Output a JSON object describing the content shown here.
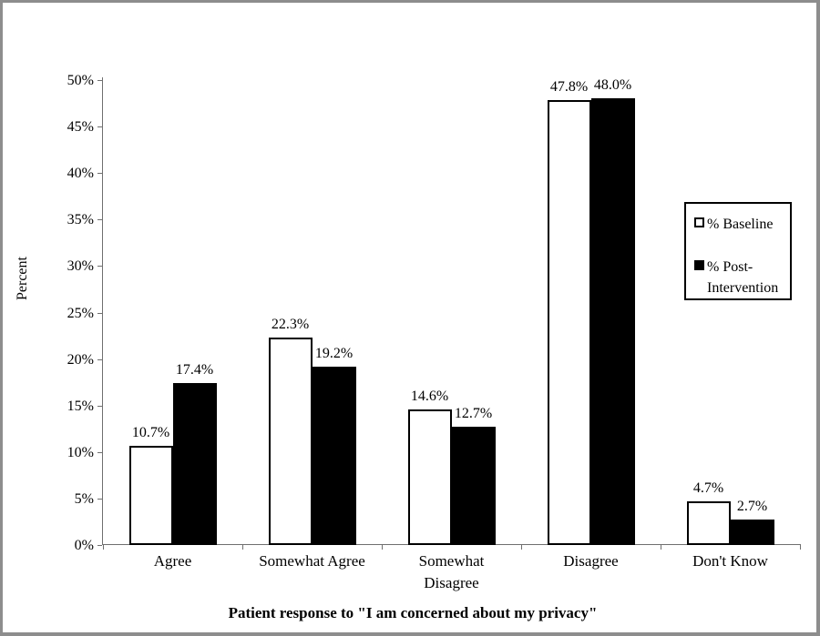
{
  "frame": {
    "border_color": "#8d8d8d",
    "background_color": "#ffffff"
  },
  "chart_data": {
    "type": "bar",
    "xlabel": "Patient response to \"I am concerned about my privacy\"",
    "ylabel": "Percent",
    "categories": [
      "Agree",
      "Somewhat Agree",
      "Somewhat\nDisagree",
      "Disagree",
      "Don't Know"
    ],
    "series": [
      {
        "name": "% Baseline",
        "fill": "#ffffff",
        "values": [
          10.7,
          22.3,
          14.6,
          47.8,
          4.7
        ],
        "labels": [
          "10.7%",
          "22.3%",
          "14.6%",
          "47.8%",
          "4.7%"
        ]
      },
      {
        "name": "% Post-\nIntervention",
        "fill": "#000000",
        "values": [
          17.4,
          19.2,
          12.7,
          48.0,
          2.7
        ],
        "labels": [
          "17.4%",
          "19.2%",
          "12.7%",
          "48.0%",
          "2.7%"
        ]
      }
    ],
    "ylim": [
      0,
      50
    ],
    "ytick_step": 5,
    "ytick_labels": [
      "0%",
      "5%",
      "10%",
      "15%",
      "20%",
      "25%",
      "30%",
      "35%",
      "40%",
      "45%",
      "50%"
    ],
    "grid": false,
    "legend_position": "right",
    "legend_entries": [
      "% Baseline",
      "% Post-\nIntervention"
    ]
  }
}
